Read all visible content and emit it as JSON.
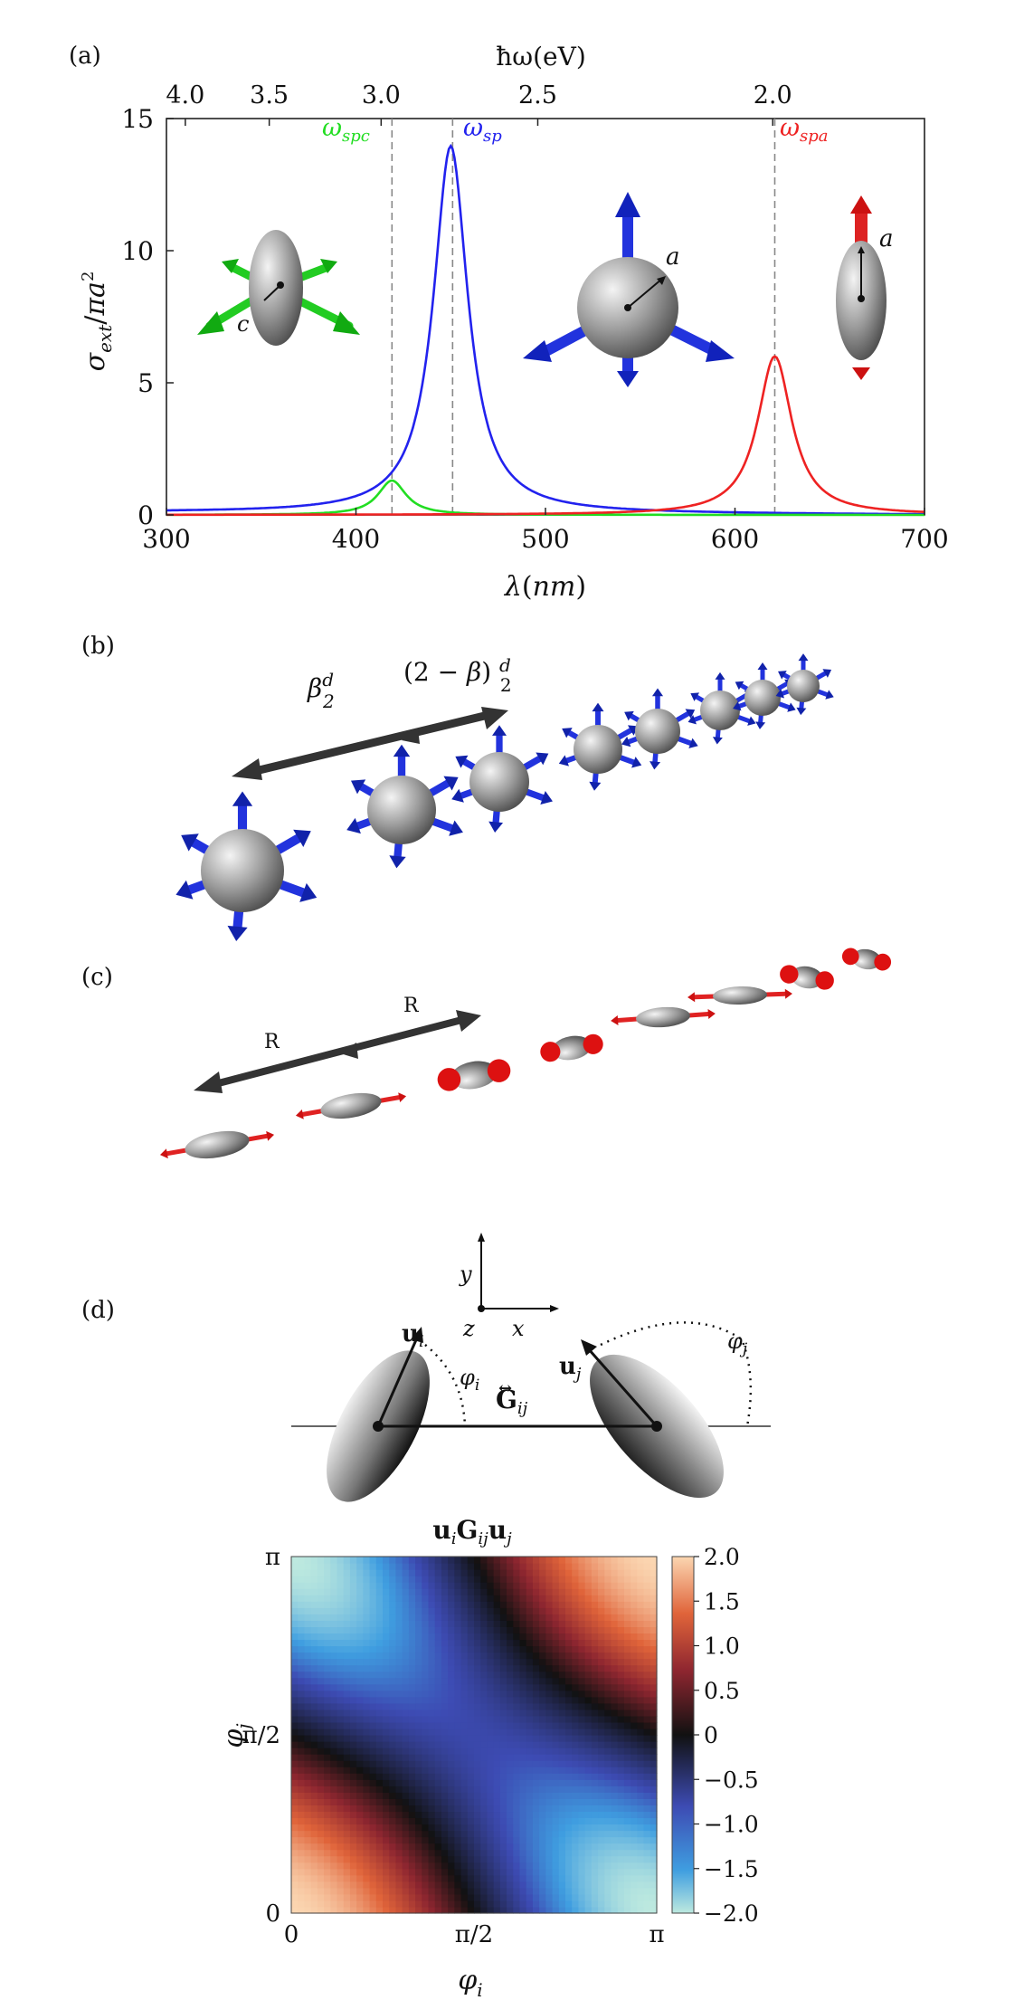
{
  "panel_a": {
    "label": "(a)",
    "top_axis_label": "ħω(eV)",
    "top_ticks": [
      "4.0",
      "3.5",
      "3.0",
      "2.5",
      "2.0"
    ],
    "x_label": "λ(nm)",
    "y_label": "σext/πa²",
    "sphere_radius_label": "a",
    "spheroid_short_label": "c",
    "spheroid_long_label": "a",
    "colors": {
      "green": "#22dd22",
      "blue": "#2222ee",
      "red": "#ee2222"
    }
  },
  "chart_data": {
    "type": "line",
    "title": "",
    "xlabel": "λ(nm)",
    "ylabel": "σext/πa²",
    "xlim": [
      300,
      700
    ],
    "ylim": [
      0,
      15
    ],
    "x_ticks": [
      300,
      400,
      500,
      600,
      700
    ],
    "y_ticks": [
      0,
      5,
      10,
      15
    ],
    "top_axis": {
      "label": "ħω(eV)",
      "ticks_ev": [
        4.0,
        3.5,
        3.0,
        2.5,
        2.0
      ]
    },
    "vlines": [
      {
        "x": 419,
        "label": "ωspc",
        "color": "#22dd22"
      },
      {
        "x": 451,
        "label": "ωsp",
        "color": "#2222ee"
      },
      {
        "x": 621,
        "label": "ωspa",
        "color": "#ee2222"
      }
    ],
    "series": [
      {
        "name": "ωsp",
        "color": "#2222ee",
        "peak_x": 450,
        "peak_y": 13.9,
        "width": 11,
        "baseline": 0.1
      },
      {
        "name": "ωspc",
        "color": "#22dd22",
        "peak_x": 419,
        "peak_y": 1.3,
        "width": 9,
        "baseline": 0.0
      },
      {
        "name": "ωspa",
        "color": "#ee2222",
        "peak_x": 621,
        "peak_y": 6.0,
        "width": 11,
        "baseline": 0.0
      }
    ]
  },
  "panel_b": {
    "label": "(b)",
    "left_spacing": "βd/2",
    "right_spacing": "(2−β)d/2"
  },
  "panel_c": {
    "label": "(c)",
    "spacing_left": "R",
    "spacing_right": "R"
  },
  "panel_d": {
    "label": "(d)",
    "axis_y": "y",
    "axis_x": "x",
    "axis_z": "z",
    "u_i": "ui",
    "u_j": "uj",
    "phi_i": "φi",
    "phi_j": "φj",
    "greens": "Gij",
    "heatmap_title": "uiGijuj",
    "x_label": "φi",
    "y_label": "φj",
    "x_ticks": [
      "0",
      "π/2",
      "π"
    ],
    "y_ticks": [
      "0",
      "π/2",
      "π"
    ],
    "colorbar_ticks": [
      "2.0",
      "1.5",
      "1.0",
      "0.5",
      "0",
      "−0.5",
      "−1.0",
      "−1.5",
      "−2.0"
    ],
    "colorbar_range": [
      -2.0,
      2.0
    ]
  }
}
